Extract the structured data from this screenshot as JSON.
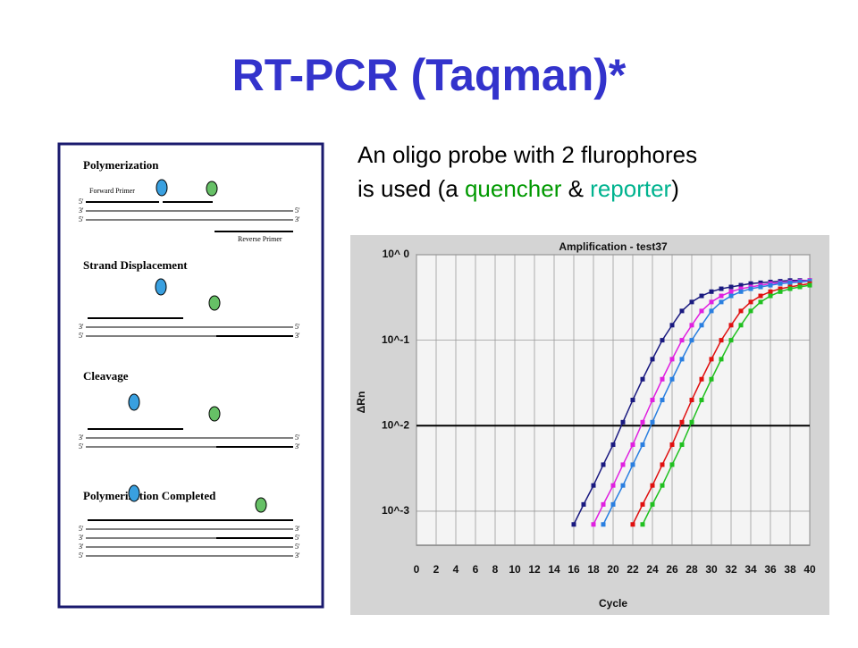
{
  "header": {
    "title": "RT-PCR (Taqman)*"
  },
  "intro": {
    "lines": [
      "An oligo probe with 2 flurophores",
      "is used (a "
    ],
    "quencher": "quencher",
    "amp": " & ",
    "reporter": "reporter",
    "close": ")"
  },
  "diagram": {
    "panels": [
      {
        "title": "Polymerization",
        "forward": "Forward Primer",
        "reverse": "Reverse Primer",
        "left_ends": [
          "5'",
          "3'",
          "5'"
        ],
        "right_ends": [
          "5'",
          "3'"
        ]
      },
      {
        "title": "Strand Displacement",
        "left_ends": [
          "3'",
          "5'"
        ],
        "right_ends": [
          "5'",
          "3'"
        ]
      },
      {
        "title": "Cleavage",
        "left_ends": [
          "3'",
          "5'"
        ],
        "right_ends": [
          "5'",
          "3'"
        ]
      },
      {
        "title": "Polymerization Completed",
        "left_ends": [
          "5'",
          "3'",
          "3'",
          "5'"
        ],
        "right_ends": [
          "3'",
          "5'",
          "5'",
          "3'"
        ]
      }
    ]
  },
  "chart_data": {
    "type": "line",
    "title": "Amplification - test37",
    "xlabel": "Cycle",
    "ylabel": "ΔRn",
    "log_y": true,
    "grid": true,
    "threshold": 0.01,
    "x": [
      14,
      15,
      16,
      17,
      18,
      19,
      20,
      21,
      22,
      23,
      24,
      25,
      26,
      27,
      28,
      29,
      30,
      31,
      32,
      33,
      34,
      35,
      36,
      37,
      38,
      39,
      40
    ],
    "xlim": [
      0,
      40
    ],
    "xticks": [
      0,
      2,
      4,
      6,
      8,
      10,
      12,
      14,
      16,
      18,
      20,
      22,
      24,
      26,
      28,
      30,
      32,
      34,
      36,
      38,
      40
    ],
    "ylim": [
      0.0004,
      1
    ],
    "yticks": [
      {
        "value": 0.001,
        "label": "10^-3"
      },
      {
        "value": 0.01,
        "label": "10^-2"
      },
      {
        "value": 0.1,
        "label": "10^-1"
      },
      {
        "value": 1,
        "label": "10^ 0"
      }
    ],
    "series": [
      {
        "color": "#1a1a80",
        "values": [
          null,
          null,
          0.0007,
          0.0012,
          0.002,
          0.0035,
          0.006,
          0.011,
          0.02,
          0.035,
          0.06,
          0.1,
          0.15,
          0.22,
          0.28,
          0.33,
          0.37,
          0.4,
          0.42,
          0.44,
          0.46,
          0.47,
          0.48,
          0.49,
          0.5,
          0.5,
          0.5
        ]
      },
      {
        "color": "#e020e0",
        "values": [
          null,
          null,
          null,
          null,
          0.0007,
          0.0012,
          0.002,
          0.0035,
          0.006,
          0.011,
          0.02,
          0.035,
          0.06,
          0.1,
          0.15,
          0.22,
          0.28,
          0.33,
          0.37,
          0.4,
          0.42,
          0.44,
          0.46,
          0.47,
          0.48,
          0.49,
          0.5
        ]
      },
      {
        "color": "#2a7fe0",
        "values": [
          null,
          null,
          null,
          null,
          null,
          0.0007,
          0.0012,
          0.002,
          0.0035,
          0.006,
          0.011,
          0.02,
          0.035,
          0.06,
          0.1,
          0.15,
          0.22,
          0.28,
          0.33,
          0.37,
          0.4,
          0.42,
          0.44,
          0.46,
          0.47,
          0.48,
          0.49
        ]
      },
      {
        "color": "#e01010",
        "values": [
          null,
          null,
          null,
          null,
          null,
          null,
          null,
          null,
          0.0007,
          0.0012,
          0.002,
          0.0035,
          0.006,
          0.011,
          0.02,
          0.035,
          0.06,
          0.1,
          0.15,
          0.22,
          0.28,
          0.33,
          0.37,
          0.4,
          0.42,
          0.44,
          0.46
        ]
      },
      {
        "color": "#20c020",
        "values": [
          null,
          null,
          null,
          null,
          null,
          null,
          null,
          null,
          null,
          0.0007,
          0.0012,
          0.002,
          0.0035,
          0.006,
          0.011,
          0.02,
          0.035,
          0.06,
          0.1,
          0.15,
          0.22,
          0.28,
          0.33,
          0.37,
          0.4,
          0.42,
          0.44
        ]
      }
    ]
  }
}
